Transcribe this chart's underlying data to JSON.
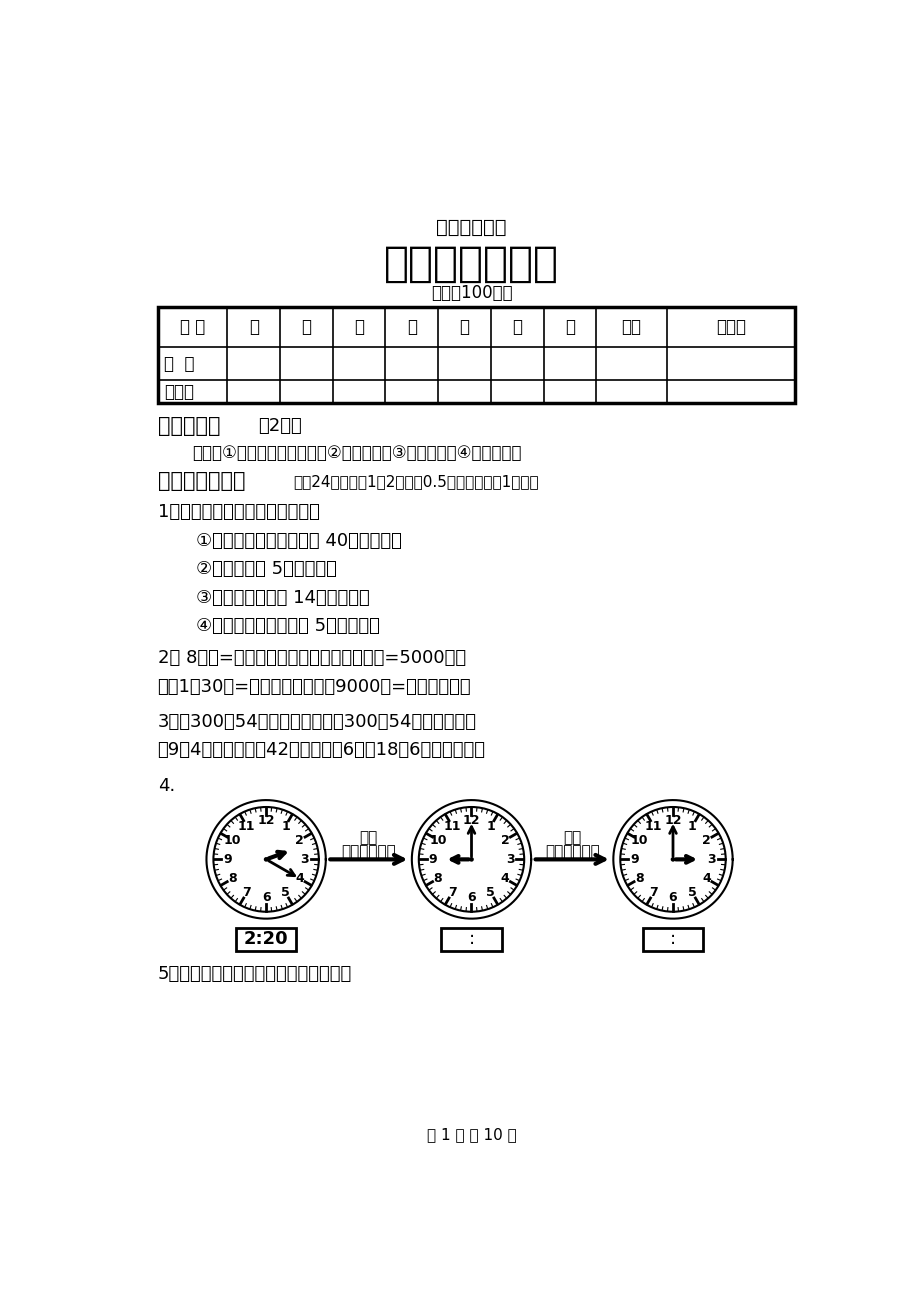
{
  "title1": "期末综合测试",
  "title2": "三年级数学试卷",
  "subtitle": "（总分100分）",
  "table_headers": [
    "题 号",
    "一",
    "二",
    "三",
    "四",
    "五",
    "六",
    "七",
    "总分",
    "总分人"
  ],
  "table_row1": "得  分",
  "table_row2": "评分人",
  "s1_title_bold": "一、书写。",
  "s1_title_normal": "（2分）",
  "s1_req": "要求：①蓝黑墨水钙笔书写。②卷面整洁。③字迹工整。④大小适当。",
  "s2_title_bold": "二、我会填空。",
  "s2_title_normal": "（全24分，其中1、2题每甲0.5分，其余每甲1分。）",
  "q1_title": "1．在（　）里填上合适的单位。",
  "q1_items": [
    "①我们上一节课的时间是 40（　　）。",
    "②一棵大树高 5（　　）。",
    "③小明身高大约是 14（　　）。",
    "④这辆货车最多载货物 5（　　）。"
  ],
  "q2_line1": "2． 8分米=（　　）厘米　　　（　　）吨=5000千克",
  "q2_line2": "　　1制30秒=（　　）秒　　　9000米=（　　）千米",
  "q3_line1": "3．比300夐54的数是（　　），300比54多（　　），",
  "q3_line2": "　9的4倍是（　），42是（　）的6倍，18是6的（　）倍。",
  "q4_label": "4.",
  "q5_title": "5．用分数表示下面各图中的阴影部分。",
  "footer": "第 1 页 共 10 页",
  "jinguo": "经过",
  "fenjhong": "）分钟",
  "clock1_time": "2:20",
  "clock1_hour_deg": 70,
  "clock1_min_deg": 120,
  "clock2_hour_deg": 270,
  "clock2_min_deg": 0,
  "clock3_hour_deg": 90,
  "clock3_min_deg": 0,
  "bg_color": "#ffffff",
  "text_color": "#000000"
}
